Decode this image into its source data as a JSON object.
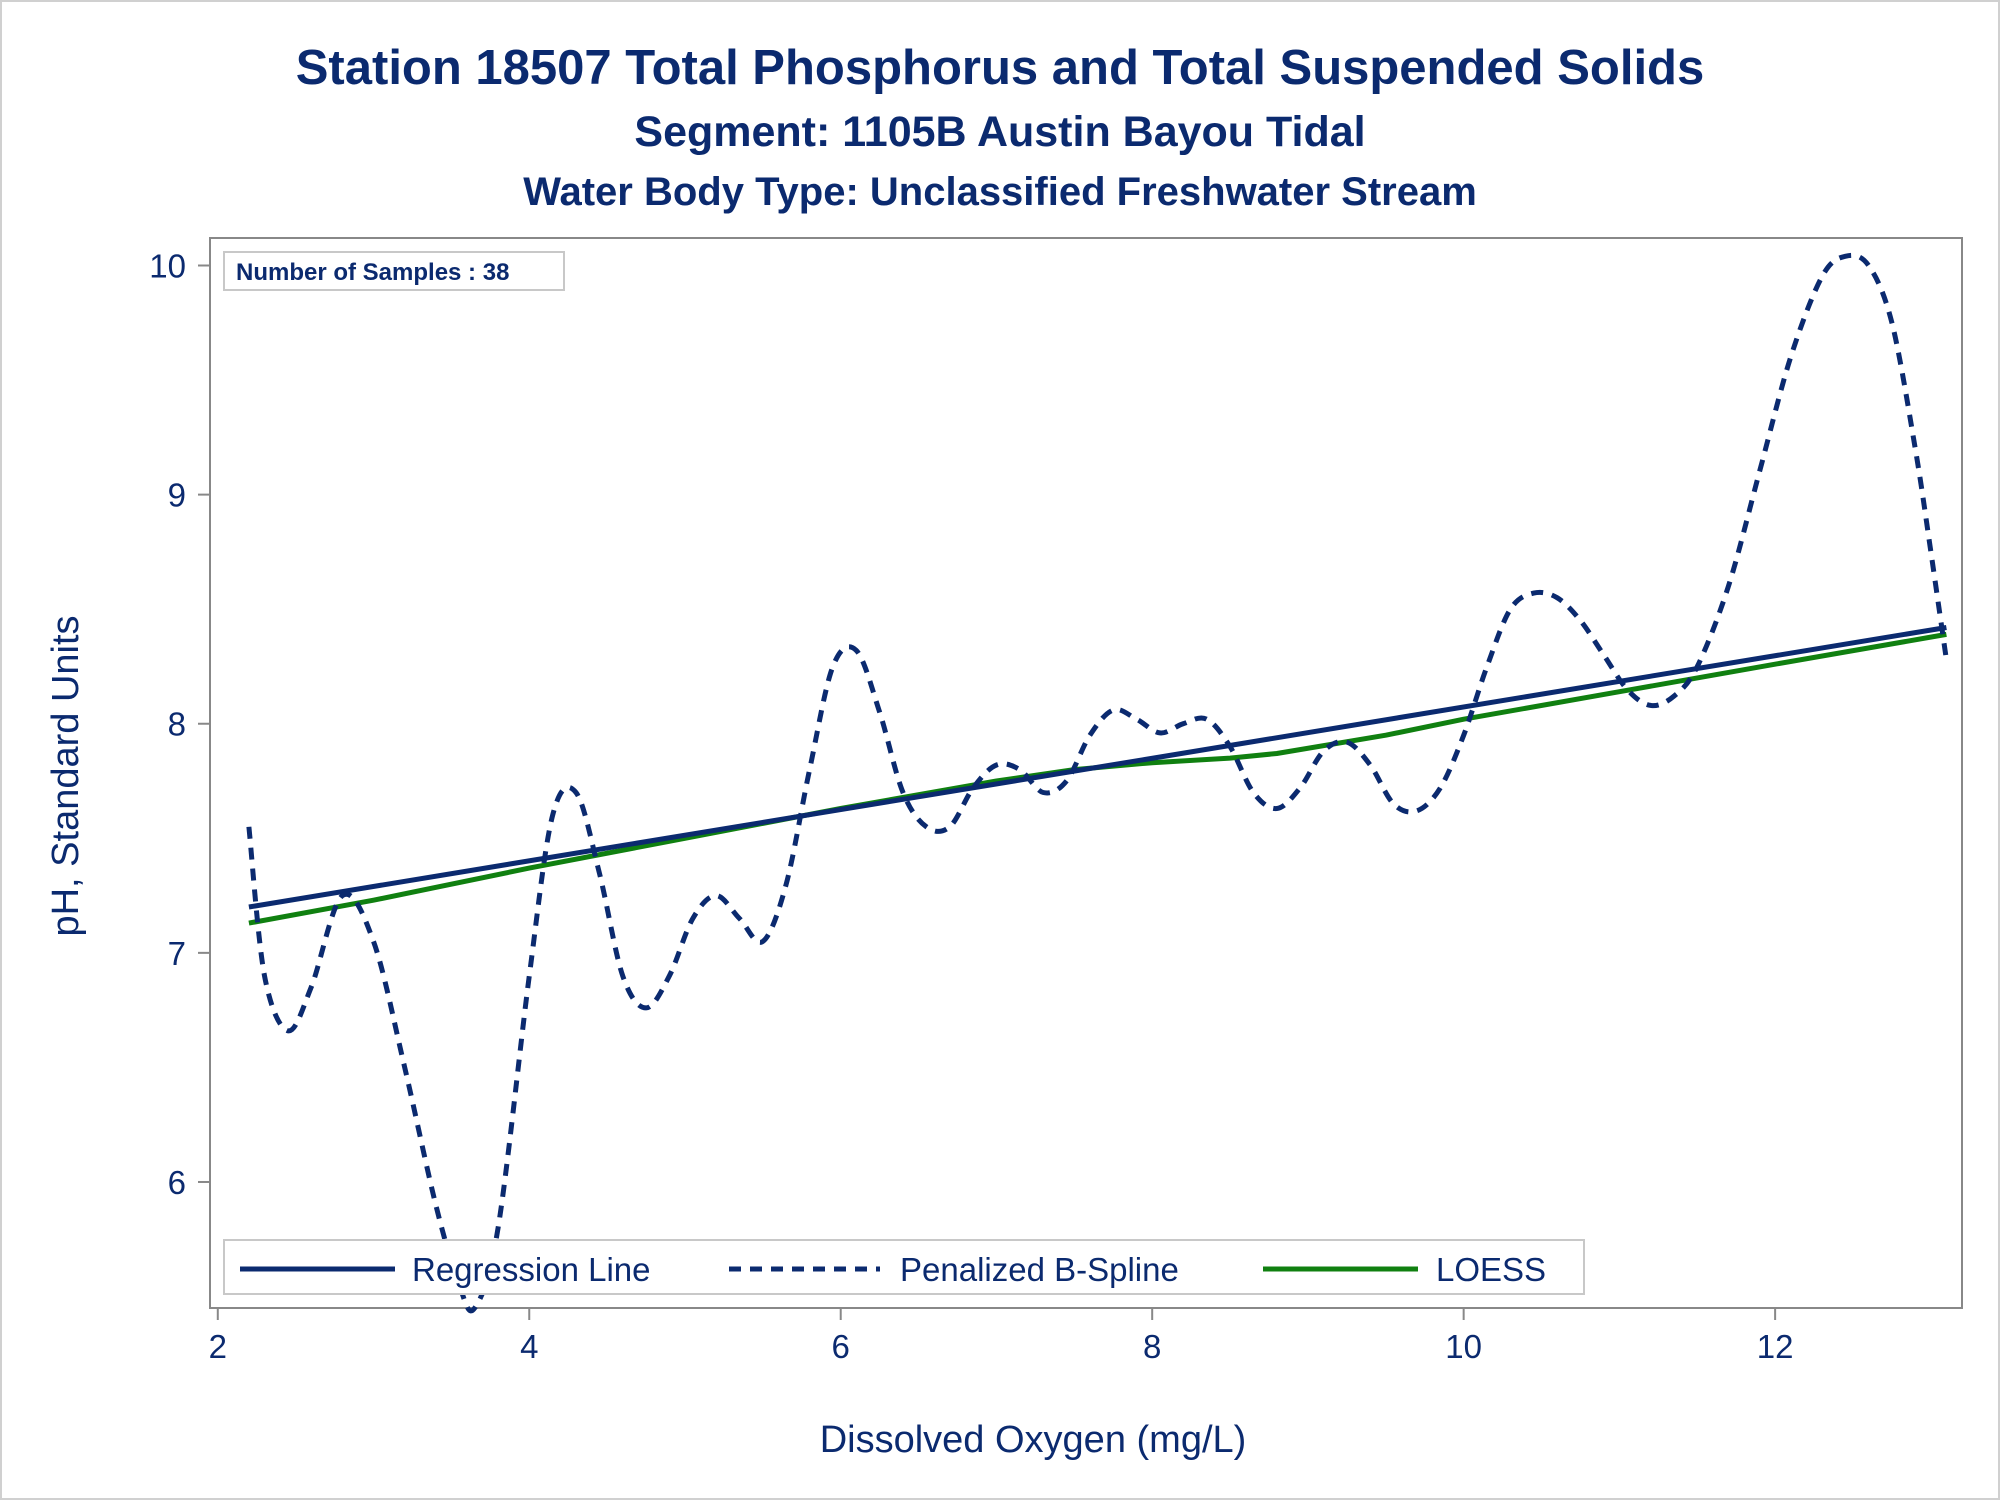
{
  "titles": {
    "line1": "Station 18507  Total Phosphorus and Total Suspended Solids",
    "line2": "Segment: 1105B  Austin Bayou Tidal",
    "line3": "Water Body Type: Unclassified Freshwater Stream"
  },
  "chart_data": {
    "type": "line",
    "xlabel": "Dissolved Oxygen (mg/L)",
    "ylabel": "pH, Standard Units",
    "xlim": [
      1.95,
      13.2
    ],
    "ylim": [
      5.45,
      10.12
    ],
    "xticks": [
      2,
      4,
      6,
      8,
      10,
      12
    ],
    "yticks": [
      6,
      7,
      8,
      9,
      10
    ],
    "inset": "Number of Samples : 38",
    "legend": {
      "placement": "bottom-inside"
    },
    "colors": {
      "regression": "#0b2a6f",
      "spline": "#0b2a6f",
      "loess": "#108010",
      "axis": "#888888",
      "text": "#0b2a6f"
    },
    "series": [
      {
        "name": "Regression Line",
        "style": "solid",
        "x": [
          2.2,
          13.1
        ],
        "y": [
          7.2,
          8.42
        ]
      },
      {
        "name": "Penalized B-Spline",
        "style": "dashed",
        "x": [
          2.2,
          2.3,
          2.45,
          2.6,
          2.8,
          3.0,
          3.2,
          3.4,
          3.55,
          3.65,
          3.8,
          4.0,
          4.15,
          4.3,
          4.45,
          4.6,
          4.75,
          4.9,
          5.05,
          5.2,
          5.35,
          5.5,
          5.65,
          5.8,
          5.95,
          6.1,
          6.25,
          6.4,
          6.55,
          6.7,
          6.85,
          7.0,
          7.15,
          7.3,
          7.45,
          7.6,
          7.75,
          7.9,
          8.05,
          8.2,
          8.35,
          8.5,
          8.65,
          8.8,
          8.95,
          9.1,
          9.25,
          9.4,
          9.55,
          9.7,
          9.85,
          10.0,
          10.15,
          10.3,
          10.45,
          10.6,
          10.75,
          10.9,
          11.05,
          11.2,
          11.35,
          11.5,
          11.7,
          11.9,
          12.1,
          12.3,
          12.45,
          12.6,
          12.75,
          12.9,
          13.0,
          13.1
        ],
        "y": [
          7.55,
          6.9,
          6.66,
          6.85,
          7.25,
          7.05,
          6.5,
          5.9,
          5.55,
          5.45,
          5.8,
          6.9,
          7.6,
          7.7,
          7.35,
          6.9,
          6.76,
          6.9,
          7.15,
          7.25,
          7.15,
          7.05,
          7.3,
          7.8,
          8.25,
          8.32,
          8.05,
          7.7,
          7.55,
          7.55,
          7.72,
          7.82,
          7.8,
          7.7,
          7.75,
          7.95,
          8.06,
          8.02,
          7.96,
          8.0,
          8.02,
          7.9,
          7.7,
          7.63,
          7.72,
          7.88,
          7.92,
          7.82,
          7.65,
          7.62,
          7.72,
          7.95,
          8.25,
          8.5,
          8.57,
          8.55,
          8.45,
          8.3,
          8.15,
          8.08,
          8.12,
          8.25,
          8.6,
          9.1,
          9.6,
          9.95,
          10.04,
          10.0,
          9.75,
          9.2,
          8.75,
          8.28
        ]
      },
      {
        "name": "LOESS",
        "style": "solid",
        "x": [
          2.2,
          3.0,
          4.0,
          5.0,
          6.0,
          7.0,
          7.5,
          8.0,
          8.5,
          8.8,
          9.5,
          10.0,
          11.0,
          12.0,
          13.1
        ],
        "y": [
          7.13,
          7.23,
          7.37,
          7.5,
          7.63,
          7.75,
          7.8,
          7.83,
          7.85,
          7.87,
          7.95,
          8.02,
          8.14,
          8.26,
          8.39
        ]
      }
    ]
  }
}
